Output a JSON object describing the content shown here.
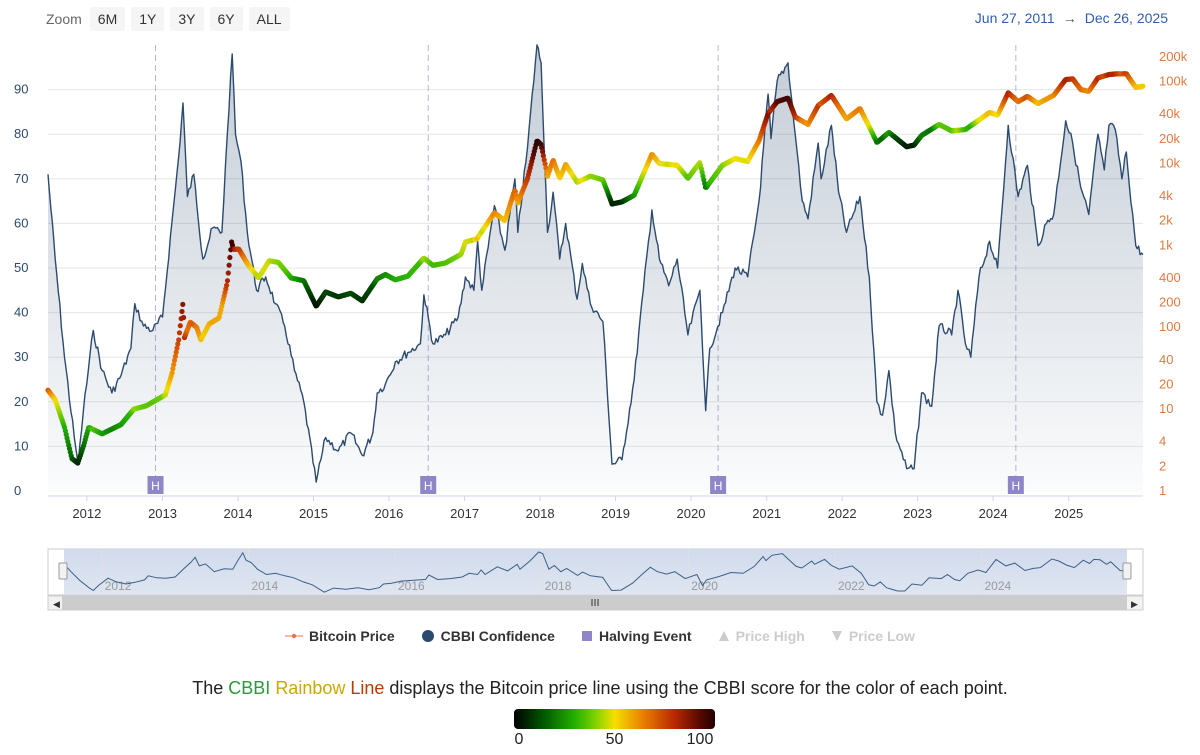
{
  "toolbar": {
    "zoom_label": "Zoom",
    "buttons": [
      "6M",
      "1Y",
      "3Y",
      "6Y",
      "ALL"
    ]
  },
  "range": {
    "from": "Jun 27, 2011",
    "arrow": "→",
    "to": "Dec 26, 2025"
  },
  "chart_data": {
    "type": "line",
    "x_axis": {
      "type": "datetime",
      "range": [
        "2011-06-27",
        "2025-12-26"
      ],
      "tick_labels": [
        "2012",
        "2013",
        "2014",
        "2015",
        "2016",
        "2017",
        "2018",
        "2019",
        "2020",
        "2021",
        "2022",
        "2023",
        "2024",
        "2025"
      ]
    },
    "y_axis_left": {
      "range": [
        0,
        100
      ],
      "tick_labels": [
        "0",
        "10",
        "20",
        "30",
        "40",
        "50",
        "60",
        "70",
        "80",
        "90"
      ]
    },
    "y_axis_right": {
      "scale": "log",
      "range": [
        1,
        250000
      ],
      "tick_labels": [
        "1",
        "2",
        "4",
        "10",
        "20",
        "40",
        "100",
        "200",
        "400",
        "1k",
        "2k",
        "4k",
        "10k",
        "20k",
        "40k",
        "100k",
        "200k"
      ]
    },
    "halving_marker_label": "H",
    "halvings": [
      "2012-11-28",
      "2016-07-09",
      "2020-05-11",
      "2024-04-20"
    ],
    "series": [
      {
        "name": "CBBI Confidence",
        "axis": "left",
        "color": "#2b4a6f",
        "points": [
          [
            "2011-06-27",
            71
          ],
          [
            "2011-08-01",
            52
          ],
          [
            "2011-09-15",
            30
          ],
          [
            "2011-11-01",
            12
          ],
          [
            "2011-11-20",
            6
          ],
          [
            "2011-12-15",
            18
          ],
          [
            "2012-02-01",
            36
          ],
          [
            "2012-03-15",
            27
          ],
          [
            "2012-05-01",
            22
          ],
          [
            "2012-06-15",
            26
          ],
          [
            "2012-08-01",
            32
          ],
          [
            "2012-08-20",
            42
          ],
          [
            "2012-10-01",
            37
          ],
          [
            "2012-11-15",
            36
          ],
          [
            "2013-01-01",
            39
          ],
          [
            "2013-02-15",
            60
          ],
          [
            "2013-03-20",
            75
          ],
          [
            "2013-04-10",
            87
          ],
          [
            "2013-05-01",
            66
          ],
          [
            "2013-06-01",
            71
          ],
          [
            "2013-07-15",
            52
          ],
          [
            "2013-09-01",
            59
          ],
          [
            "2013-10-15",
            58
          ],
          [
            "2013-11-10",
            80
          ],
          [
            "2013-12-04",
            98
          ],
          [
            "2013-12-20",
            80
          ],
          [
            "2014-01-15",
            74
          ],
          [
            "2014-02-15",
            58
          ],
          [
            "2014-04-01",
            45
          ],
          [
            "2014-05-15",
            48
          ],
          [
            "2014-07-01",
            42
          ],
          [
            "2014-08-15",
            37
          ],
          [
            "2014-10-01",
            27
          ],
          [
            "2014-11-15",
            20
          ],
          [
            "2015-01-14",
            2
          ],
          [
            "2015-03-01",
            12
          ],
          [
            "2015-05-01",
            9
          ],
          [
            "2015-07-01",
            13
          ],
          [
            "2015-08-25",
            8
          ],
          [
            "2015-10-15",
            13
          ],
          [
            "2015-11-05",
            22
          ],
          [
            "2015-12-15",
            24
          ],
          [
            "2016-02-01",
            29
          ],
          [
            "2016-04-01",
            31
          ],
          [
            "2016-06-01",
            33
          ],
          [
            "2016-06-18",
            44
          ],
          [
            "2016-08-01",
            33
          ],
          [
            "2016-10-01",
            35
          ],
          [
            "2016-12-01",
            39
          ],
          [
            "2017-01-05",
            48
          ],
          [
            "2017-02-15",
            45
          ],
          [
            "2017-03-05",
            56
          ],
          [
            "2017-03-25",
            45
          ],
          [
            "2017-05-25",
            64
          ],
          [
            "2017-07-15",
            54
          ],
          [
            "2017-09-01",
            70
          ],
          [
            "2017-09-15",
            58
          ],
          [
            "2017-11-01",
            77
          ],
          [
            "2017-12-17",
            100
          ],
          [
            "2018-01-06",
            96
          ],
          [
            "2018-02-06",
            58
          ],
          [
            "2018-03-05",
            67
          ],
          [
            "2018-04-06",
            52
          ],
          [
            "2018-05-05",
            60
          ],
          [
            "2018-06-29",
            43
          ],
          [
            "2018-07-24",
            51
          ],
          [
            "2018-09-01",
            42
          ],
          [
            "2018-11-01",
            38
          ],
          [
            "2018-12-15",
            6
          ],
          [
            "2019-02-01",
            7
          ],
          [
            "2019-04-01",
            25
          ],
          [
            "2019-05-15",
            45
          ],
          [
            "2019-06-26",
            63
          ],
          [
            "2019-08-01",
            52
          ],
          [
            "2019-09-15",
            46
          ],
          [
            "2019-10-26",
            52
          ],
          [
            "2019-12-17",
            35
          ],
          [
            "2020-02-13",
            45
          ],
          [
            "2020-03-12",
            18
          ],
          [
            "2020-04-01",
            32
          ],
          [
            "2020-06-01",
            40
          ],
          [
            "2020-08-01",
            50
          ],
          [
            "2020-10-01",
            48
          ],
          [
            "2020-11-25",
            65
          ],
          [
            "2021-01-08",
            89
          ],
          [
            "2021-01-22",
            79
          ],
          [
            "2021-02-21",
            92
          ],
          [
            "2021-04-14",
            96
          ],
          [
            "2021-05-19",
            80
          ],
          [
            "2021-06-22",
            65
          ],
          [
            "2021-07-20",
            61
          ],
          [
            "2021-09-07",
            78
          ],
          [
            "2021-09-21",
            70
          ],
          [
            "2021-11-10",
            82
          ],
          [
            "2021-12-15",
            67
          ],
          [
            "2022-01-22",
            58
          ],
          [
            "2022-03-28",
            66
          ],
          [
            "2022-05-12",
            48
          ],
          [
            "2022-06-18",
            20
          ],
          [
            "2022-07-15",
            17
          ],
          [
            "2022-08-15",
            27
          ],
          [
            "2022-09-15",
            13
          ],
          [
            "2022-11-09",
            5
          ],
          [
            "2022-12-15",
            5
          ],
          [
            "2023-01-20",
            22
          ],
          [
            "2023-03-10",
            19
          ],
          [
            "2023-04-15",
            37
          ],
          [
            "2023-06-15",
            35
          ],
          [
            "2023-07-15",
            45
          ],
          [
            "2023-08-20",
            33
          ],
          [
            "2023-09-15",
            30
          ],
          [
            "2023-10-25",
            48
          ],
          [
            "2023-12-15",
            56
          ],
          [
            "2024-01-23",
            50
          ],
          [
            "2024-03-14",
            82
          ],
          [
            "2024-05-01",
            66
          ],
          [
            "2024-06-15",
            73
          ],
          [
            "2024-08-05",
            55
          ],
          [
            "2024-09-15",
            60
          ],
          [
            "2024-10-20",
            62
          ],
          [
            "2024-12-17",
            83
          ],
          [
            "2025-01-20",
            78
          ],
          [
            "2025-02-28",
            68
          ],
          [
            "2025-04-08",
            62
          ],
          [
            "2025-05-22",
            80
          ],
          [
            "2025-06-22",
            72
          ],
          [
            "2025-07-14",
            82
          ],
          [
            "2025-08-14",
            81
          ],
          [
            "2025-09-15",
            70
          ],
          [
            "2025-10-06",
            76
          ],
          [
            "2025-11-21",
            55
          ],
          [
            "2025-12-26",
            53
          ]
        ]
      },
      {
        "name": "Bitcoin Price",
        "axis": "right",
        "legend_color": "#e8744a",
        "points": [
          [
            "2011-06-27",
            17
          ],
          [
            "2011-08-01",
            13
          ],
          [
            "2011-09-15",
            6
          ],
          [
            "2011-10-20",
            2.5
          ],
          [
            "2011-11-18",
            2.2
          ],
          [
            "2011-12-15",
            3.5
          ],
          [
            "2012-01-10",
            6
          ],
          [
            "2012-03-15",
            5
          ],
          [
            "2012-06-15",
            6.5
          ],
          [
            "2012-08-15",
            10
          ],
          [
            "2012-10-15",
            11
          ],
          [
            "2012-12-15",
            13.5
          ],
          [
            "2013-01-15",
            15
          ],
          [
            "2013-02-15",
            27
          ],
          [
            "2013-03-20",
            70
          ],
          [
            "2013-04-10",
            200
          ],
          [
            "2013-04-17",
            75
          ],
          [
            "2013-05-15",
            115
          ],
          [
            "2013-06-15",
            100
          ],
          [
            "2013-07-05",
            70
          ],
          [
            "2013-08-15",
            110
          ],
          [
            "2013-10-01",
            130
          ],
          [
            "2013-11-10",
            350
          ],
          [
            "2013-12-01",
            1100
          ],
          [
            "2013-12-10",
            900
          ],
          [
            "2014-01-05",
            900
          ],
          [
            "2014-02-15",
            600
          ],
          [
            "2014-04-10",
            400
          ],
          [
            "2014-06-01",
            650
          ],
          [
            "2014-07-15",
            620
          ],
          [
            "2014-09-15",
            400
          ],
          [
            "2014-11-15",
            370
          ],
          [
            "2015-01-14",
            180
          ],
          [
            "2015-03-01",
            270
          ],
          [
            "2015-05-01",
            235
          ],
          [
            "2015-07-01",
            260
          ],
          [
            "2015-08-25",
            210
          ],
          [
            "2015-11-05",
            390
          ],
          [
            "2015-12-15",
            440
          ],
          [
            "2016-02-01",
            380
          ],
          [
            "2016-04-01",
            420
          ],
          [
            "2016-06-18",
            700
          ],
          [
            "2016-08-01",
            570
          ],
          [
            "2016-10-01",
            610
          ],
          [
            "2016-12-15",
            780
          ],
          [
            "2017-01-05",
            1100
          ],
          [
            "2017-03-01",
            1200
          ],
          [
            "2017-05-25",
            2500
          ],
          [
            "2017-07-15",
            2000
          ],
          [
            "2017-09-01",
            4800
          ],
          [
            "2017-09-15",
            3300
          ],
          [
            "2017-11-01",
            6500
          ],
          [
            "2017-12-17",
            19000
          ],
          [
            "2018-01-06",
            17000
          ],
          [
            "2018-02-06",
            7000
          ],
          [
            "2018-03-05",
            11000
          ],
          [
            "2018-04-06",
            6600
          ],
          [
            "2018-05-05",
            9700
          ],
          [
            "2018-06-29",
            5900
          ],
          [
            "2018-09-01",
            7000
          ],
          [
            "2018-11-01",
            6300
          ],
          [
            "2018-12-15",
            3200
          ],
          [
            "2019-02-01",
            3400
          ],
          [
            "2019-04-01",
            4100
          ],
          [
            "2019-06-26",
            13000
          ],
          [
            "2019-08-01",
            10000
          ],
          [
            "2019-10-26",
            9500
          ],
          [
            "2019-12-17",
            6600
          ],
          [
            "2020-02-13",
            10300
          ],
          [
            "2020-03-12",
            5000
          ],
          [
            "2020-06-01",
            9500
          ],
          [
            "2020-08-01",
            11500
          ],
          [
            "2020-10-01",
            10600
          ],
          [
            "2020-11-25",
            19000
          ],
          [
            "2021-01-08",
            41000
          ],
          [
            "2021-02-21",
            57000
          ],
          [
            "2021-04-14",
            63000
          ],
          [
            "2021-05-19",
            37000
          ],
          [
            "2021-07-20",
            30000
          ],
          [
            "2021-09-07",
            51000
          ],
          [
            "2021-11-10",
            68000
          ],
          [
            "2022-01-22",
            35000
          ],
          [
            "2022-03-28",
            47000
          ],
          [
            "2022-05-12",
            28000
          ],
          [
            "2022-06-18",
            18000
          ],
          [
            "2022-08-15",
            24000
          ],
          [
            "2022-11-09",
            16000
          ],
          [
            "2022-12-15",
            16800
          ],
          [
            "2023-01-20",
            22000
          ],
          [
            "2023-04-15",
            30000
          ],
          [
            "2023-06-15",
            25000
          ],
          [
            "2023-08-20",
            26000
          ],
          [
            "2023-10-25",
            34000
          ],
          [
            "2023-12-15",
            42000
          ],
          [
            "2024-01-23",
            39000
          ],
          [
            "2024-03-14",
            73000
          ],
          [
            "2024-05-01",
            57000
          ],
          [
            "2024-06-15",
            66000
          ],
          [
            "2024-08-05",
            54000
          ],
          [
            "2024-10-20",
            68000
          ],
          [
            "2024-12-17",
            106000
          ],
          [
            "2025-01-20",
            108000
          ],
          [
            "2025-02-28",
            80000
          ],
          [
            "2025-04-08",
            76000
          ],
          [
            "2025-05-22",
            111000
          ],
          [
            "2025-07-14",
            122000
          ],
          [
            "2025-08-14",
            124000
          ],
          [
            "2025-10-06",
            125000
          ],
          [
            "2025-11-21",
            85000
          ],
          [
            "2025-12-26",
            88000
          ]
        ]
      }
    ],
    "navigator": {
      "tick_labels": [
        "2012",
        "2014",
        "2016",
        "2018",
        "2020",
        "2022",
        "2024"
      ]
    }
  },
  "legend": [
    {
      "label": "Bitcoin Price",
      "enabled": true
    },
    {
      "label": "CBBI Confidence",
      "enabled": true
    },
    {
      "label": "Halving Event",
      "enabled": true
    },
    {
      "label": "Price High",
      "enabled": false
    },
    {
      "label": "Price Low",
      "enabled": false
    }
  ],
  "caption": {
    "prefix": "The ",
    "cbbi": "CBBI",
    "rainbow": "Rainbow",
    "line": "Line",
    "suffix": " displays the Bitcoin price line using the CBBI score for the color of each point."
  },
  "colorbar": {
    "labels": [
      "0",
      "50",
      "100"
    ],
    "values": [
      0,
      50,
      100
    ]
  }
}
